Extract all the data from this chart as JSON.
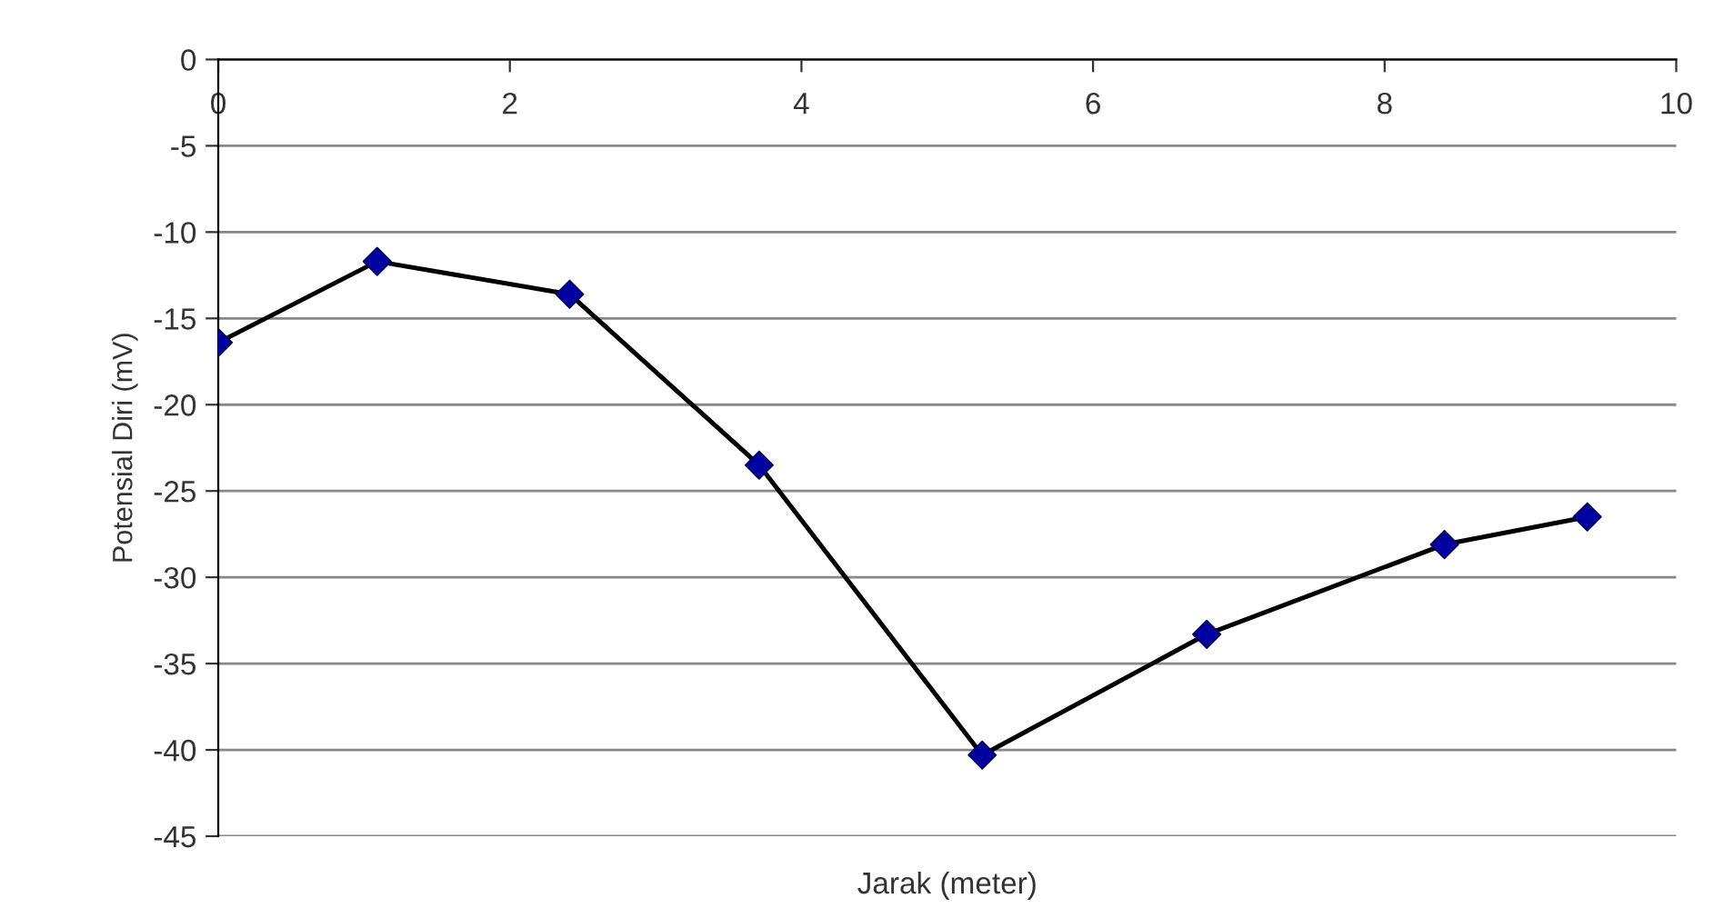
{
  "chart_data": {
    "type": "line",
    "xlabel": "Jarak (meter)",
    "ylabel": "Potensial Diri (mV)",
    "x": [
      0,
      1.09,
      2.41,
      3.71,
      5.24,
      6.78,
      8.41,
      9.39
    ],
    "series": [
      {
        "color": "#000000",
        "colors": [
          "#0000a0",
          "#0000a0",
          "#0000a0",
          "#0000a0",
          "#0000a0",
          "#0000a0",
          "#0000a0",
          "#0000a0"
        ],
        "values": [
          -16.4,
          -11.7,
          -13.6,
          -23.5,
          -40.3,
          -33.3,
          -28.1,
          -26.5
        ]
      }
    ],
    "xlim": [
      0,
      10
    ],
    "xticks": [
      0,
      2,
      4,
      6,
      8,
      10
    ],
    "ylim": [
      -45,
      0
    ],
    "yticks": [
      0,
      -5,
      -10,
      -15,
      -20,
      -25,
      -30,
      -35,
      -40,
      -45
    ],
    "grid": "y",
    "marker": "diamond",
    "line_style": "solid",
    "legend": false
  }
}
